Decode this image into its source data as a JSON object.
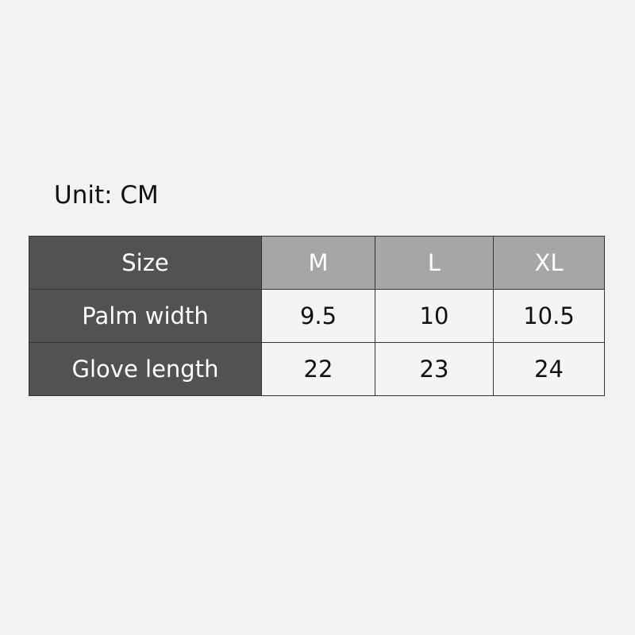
{
  "unit_label": "Unit: CM",
  "table": {
    "corner": "Size",
    "sizes": [
      "M",
      "L",
      "XL"
    ],
    "rows": [
      {
        "label": "Palm width",
        "values": [
          "9.5",
          "10",
          "10.5"
        ]
      },
      {
        "label": "Glove length",
        "values": [
          "22",
          "23",
          "24"
        ]
      }
    ]
  }
}
